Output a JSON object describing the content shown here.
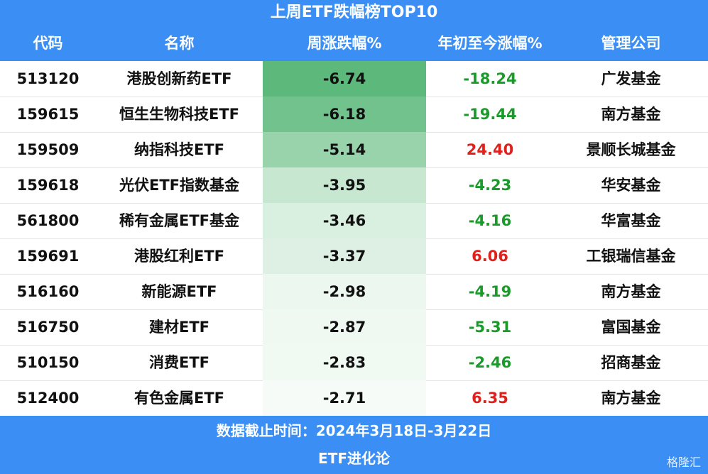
{
  "title": "上周ETF跌幅榜TOP10",
  "table": {
    "header": [
      "代码",
      "名称",
      "周涨跌幅%",
      "年初至今涨幅%",
      "管理公司"
    ],
    "rows": [
      [
        "513120",
        "港股创新药ETF",
        "-6.74",
        "-18.24",
        "广发基金"
      ],
      [
        "159615",
        "恒生生物科技ETF",
        "-6.18",
        "-19.44",
        "南方基金"
      ],
      [
        "159509",
        "纳指科技ETF",
        "-5.14",
        "24.40",
        "景顺长城基金"
      ],
      [
        "159618",
        "光伏ETF指数基金",
        "-3.95",
        "-4.23",
        "华安基金"
      ],
      [
        "561800",
        "稀有金属ETF基金",
        "-3.46",
        "-4.16",
        "华富基金"
      ],
      [
        "159691",
        "港股红利ETF",
        "-3.37",
        "6.06",
        "工银瑞信基金"
      ],
      [
        "516160",
        "新能源ETF",
        "-2.98",
        "-4.19",
        "南方基金"
      ],
      [
        "516750",
        "建材ETF",
        "-2.87",
        "-5.31",
        "富国基金"
      ],
      [
        "510150",
        "消费ETF",
        "-2.83",
        "-2.46",
        "招商基金"
      ],
      [
        "512400",
        "有色金属ETF",
        "-2.71",
        "6.35",
        "南方基金"
      ]
    ]
  },
  "footer": {
    "note": "数据截止时间：2024年3月18日-3月22日",
    "source": "ETF进化论"
  },
  "watermark": "格隆汇"
}
